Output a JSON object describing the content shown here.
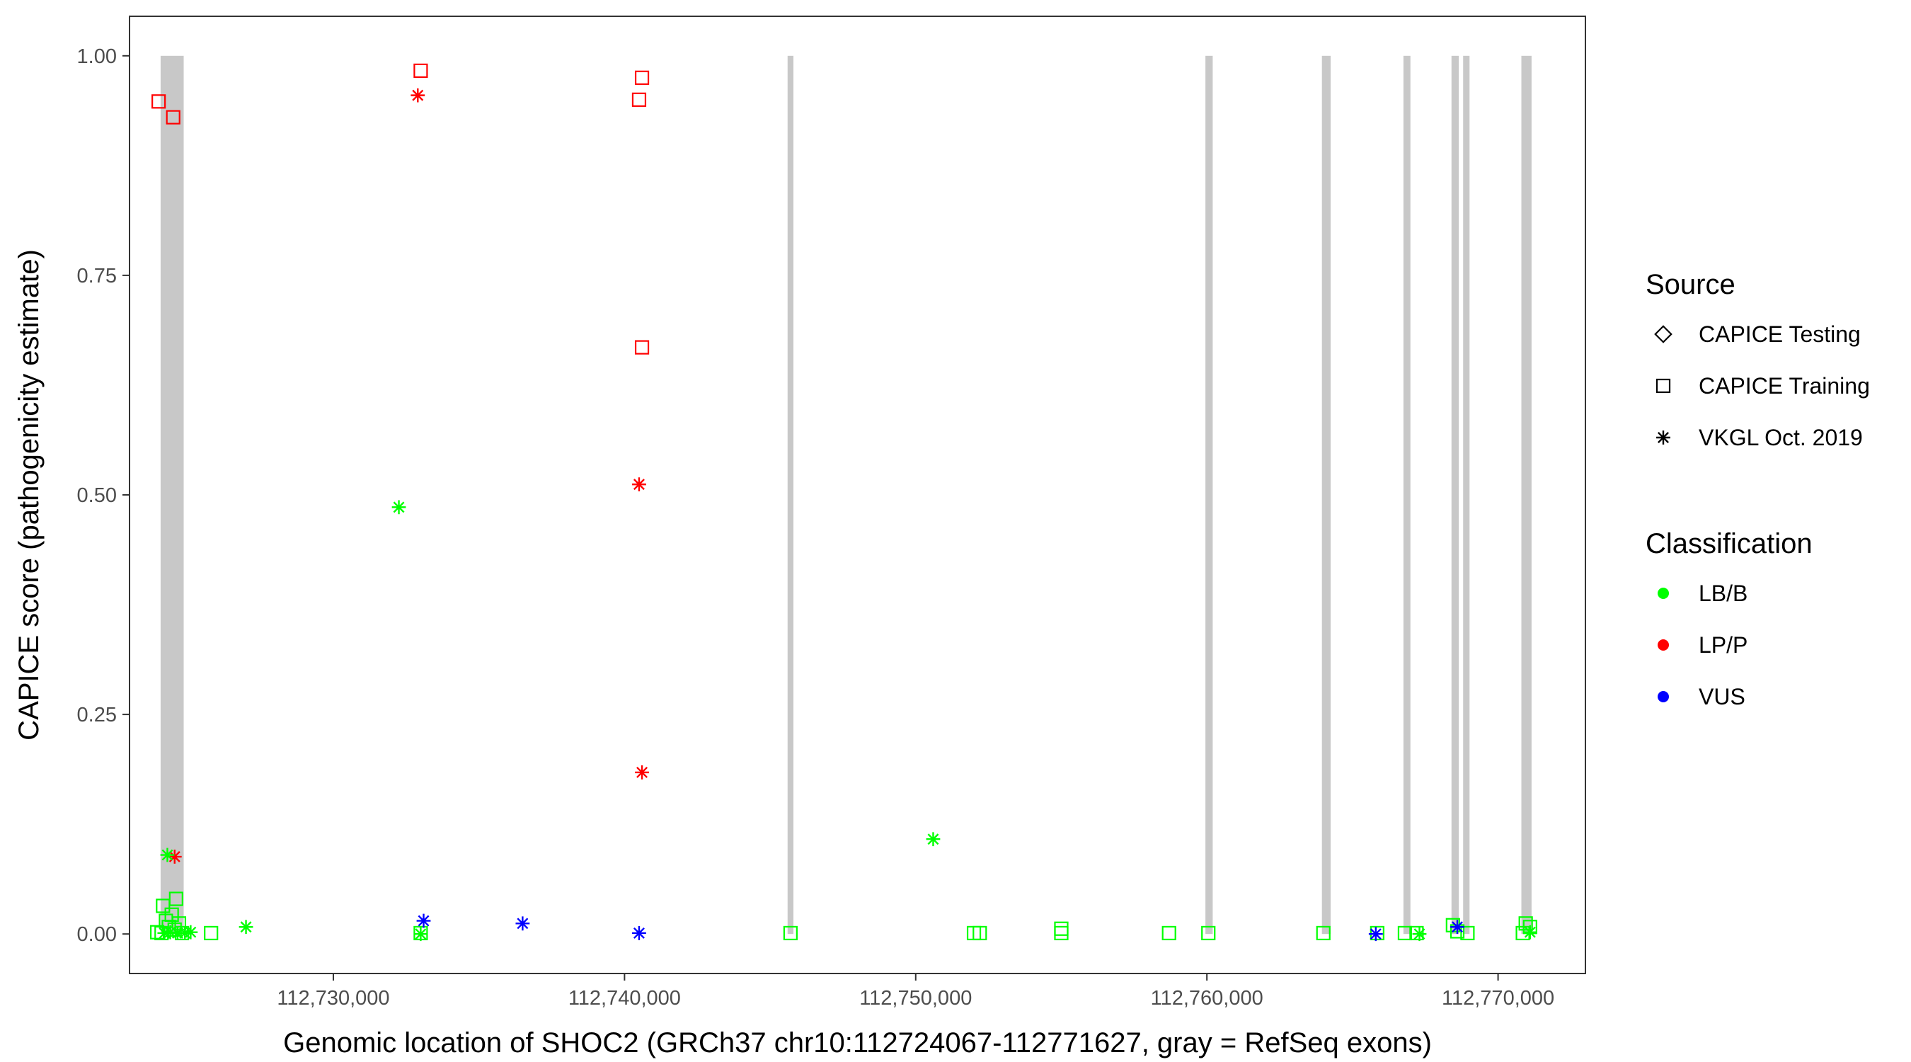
{
  "chart_data": {
    "type": "scatter",
    "xlabel": "Genomic location of SHOC2 (GRCh37 chr10:112724067-112771627, gray = RefSeq exons)",
    "ylabel": "CAPICE score (pathogenicity estimate)",
    "xlim": [
      112723000,
      112773000
    ],
    "ylim": [
      -0.045,
      1.045
    ],
    "x_ticks": [
      112730000,
      112740000,
      112750000,
      112760000,
      112770000
    ],
    "x_tick_labels": [
      "112,730,000",
      "112,740,000",
      "112,750,000",
      "112,760,000",
      "112,770,000"
    ],
    "y_ticks": [
      0,
      0.25,
      0.5,
      0.75,
      1.0
    ],
    "y_tick_labels": [
      "0.00",
      "0.25",
      "0.50",
      "0.75",
      "1.00"
    ],
    "grid": false,
    "exons": [
      [
        112724067,
        112724860
      ],
      [
        112745600,
        112745800
      ],
      [
        112759950,
        112760200
      ],
      [
        112763950,
        112764250
      ],
      [
        112766750,
        112766990
      ],
      [
        112768400,
        112768650
      ],
      [
        112768800,
        112769020
      ],
      [
        112770800,
        112771150
      ]
    ],
    "legends": [
      {
        "title": "Source",
        "entries": [
          {
            "label": "CAPICE Testing",
            "shape": "diamond"
          },
          {
            "label": "CAPICE Training",
            "shape": "square"
          },
          {
            "label": "VKGL Oct. 2019",
            "shape": "asterisk"
          }
        ]
      },
      {
        "title": "Classification",
        "entries": [
          {
            "label": "LB/B",
            "color": "#00ff00"
          },
          {
            "label": "LP/P",
            "color": "#ff0000"
          },
          {
            "label": "VUS",
            "color": "#0000ff"
          }
        ]
      }
    ],
    "colors": {
      "LB/B": "#00ff00",
      "LP/P": "#ff0000",
      "VUS": "#0000ff",
      "exon": "#c8c8c8"
    },
    "points": [
      {
        "x": 112724000,
        "y": 0.948,
        "source": "CAPICE Training",
        "class": "LP/P"
      },
      {
        "x": 112724500,
        "y": 0.93,
        "source": "CAPICE Training",
        "class": "LP/P"
      },
      {
        "x": 112733000,
        "y": 0.983,
        "source": "CAPICE Training",
        "class": "LP/P"
      },
      {
        "x": 112732900,
        "y": 0.955,
        "source": "VKGL Oct. 2019",
        "class": "LP/P"
      },
      {
        "x": 112740600,
        "y": 0.975,
        "source": "CAPICE Training",
        "class": "LP/P"
      },
      {
        "x": 112740500,
        "y": 0.95,
        "source": "CAPICE Training",
        "class": "LP/P"
      },
      {
        "x": 112740600,
        "y": 0.668,
        "source": "CAPICE Training",
        "class": "LP/P"
      },
      {
        "x": 112740500,
        "y": 0.512,
        "source": "VKGL Oct. 2019",
        "class": "LP/P"
      },
      {
        "x": 112740600,
        "y": 0.184,
        "source": "VKGL Oct. 2019",
        "class": "LP/P"
      },
      {
        "x": 112724550,
        "y": 0.088,
        "source": "VKGL Oct. 2019",
        "class": "LP/P"
      },
      {
        "x": 112732250,
        "y": 0.486,
        "source": "VKGL Oct. 2019",
        "class": "LB/B"
      },
      {
        "x": 112750600,
        "y": 0.108,
        "source": "VKGL Oct. 2019",
        "class": "LB/B"
      },
      {
        "x": 112727000,
        "y": 0.008,
        "source": "VKGL Oct. 2019",
        "class": "LB/B"
      },
      {
        "x": 112724300,
        "y": 0.09,
        "source": "VKGL Oct. 2019",
        "class": "LB/B"
      },
      {
        "x": 112724600,
        "y": 0.04,
        "source": "CAPICE Training",
        "class": "LB/B"
      },
      {
        "x": 112724150,
        "y": 0.032,
        "source": "CAPICE Training",
        "class": "LB/B"
      },
      {
        "x": 112724450,
        "y": 0.022,
        "source": "CAPICE Training",
        "class": "LB/B"
      },
      {
        "x": 112724250,
        "y": 0.015,
        "source": "CAPICE Training",
        "class": "LB/B"
      },
      {
        "x": 112724700,
        "y": 0.012,
        "source": "CAPICE Training",
        "class": "LB/B"
      },
      {
        "x": 112724350,
        "y": 0.008,
        "source": "CAPICE Training",
        "class": "LB/B"
      },
      {
        "x": 112724550,
        "y": 0.005,
        "source": "CAPICE Training",
        "class": "LB/B"
      },
      {
        "x": 112723950,
        "y": 0.002,
        "source": "CAPICE Training",
        "class": "LB/B"
      },
      {
        "x": 112724100,
        "y": 0.001,
        "source": "CAPICE Training",
        "class": "LB/B"
      },
      {
        "x": 112724800,
        "y": 0.001,
        "source": "CAPICE Training",
        "class": "LB/B"
      },
      {
        "x": 112724200,
        "y": 0.001,
        "source": "VKGL Oct. 2019",
        "class": "LB/B"
      },
      {
        "x": 112724400,
        "y": 0.002,
        "source": "VKGL Oct. 2019",
        "class": "LB/B"
      },
      {
        "x": 112724650,
        "y": 0.001,
        "source": "VKGL Oct. 2019",
        "class": "LB/B"
      },
      {
        "x": 112724900,
        "y": 0.001,
        "source": "VKGL Oct. 2019",
        "class": "LB/B"
      },
      {
        "x": 112725100,
        "y": 0.002,
        "source": "VKGL Oct. 2019",
        "class": "LB/B"
      },
      {
        "x": 112725800,
        "y": 0.001,
        "source": "CAPICE Training",
        "class": "LB/B"
      },
      {
        "x": 112733000,
        "y": 0.001,
        "source": "CAPICE Training",
        "class": "LB/B"
      },
      {
        "x": 112733000,
        "y": 0.0,
        "source": "VKGL Oct. 2019",
        "class": "LB/B"
      },
      {
        "x": 112745700,
        "y": 0.001,
        "source": "CAPICE Training",
        "class": "LB/B"
      },
      {
        "x": 112752000,
        "y": 0.001,
        "source": "CAPICE Training",
        "class": "LB/B"
      },
      {
        "x": 112752200,
        "y": 0.001,
        "source": "CAPICE Training",
        "class": "LB/B"
      },
      {
        "x": 112755000,
        "y": 0.006,
        "source": "CAPICE Training",
        "class": "LB/B"
      },
      {
        "x": 112755000,
        "y": 0.001,
        "source": "CAPICE Training",
        "class": "LB/B"
      },
      {
        "x": 112758700,
        "y": 0.001,
        "source": "CAPICE Training",
        "class": "LB/B"
      },
      {
        "x": 112760050,
        "y": 0.001,
        "source": "CAPICE Training",
        "class": "LB/B"
      },
      {
        "x": 112764000,
        "y": 0.001,
        "source": "CAPICE Training",
        "class": "LB/B"
      },
      {
        "x": 112765850,
        "y": 0.001,
        "source": "CAPICE Training",
        "class": "LB/B"
      },
      {
        "x": 112766800,
        "y": 0.001,
        "source": "CAPICE Training",
        "class": "LB/B"
      },
      {
        "x": 112767200,
        "y": 0.001,
        "source": "CAPICE Training",
        "class": "LB/B"
      },
      {
        "x": 112767300,
        "y": 0.0,
        "source": "VKGL Oct. 2019",
        "class": "LB/B"
      },
      {
        "x": 112768450,
        "y": 0.01,
        "source": "CAPICE Training",
        "class": "LB/B"
      },
      {
        "x": 112768600,
        "y": 0.003,
        "source": "CAPICE Training",
        "class": "LB/B"
      },
      {
        "x": 112768950,
        "y": 0.001,
        "source": "CAPICE Training",
        "class": "LB/B"
      },
      {
        "x": 112770950,
        "y": 0.012,
        "source": "CAPICE Training",
        "class": "LB/B"
      },
      {
        "x": 112771100,
        "y": 0.008,
        "source": "CAPICE Training",
        "class": "LB/B"
      },
      {
        "x": 112770850,
        "y": 0.001,
        "source": "CAPICE Training",
        "class": "LB/B"
      },
      {
        "x": 112771100,
        "y": 0.002,
        "source": "VKGL Oct. 2019",
        "class": "LB/B"
      },
      {
        "x": 112733100,
        "y": 0.015,
        "source": "VKGL Oct. 2019",
        "class": "VUS"
      },
      {
        "x": 112736500,
        "y": 0.012,
        "source": "VKGL Oct. 2019",
        "class": "VUS"
      },
      {
        "x": 112740500,
        "y": 0.001,
        "source": "VKGL Oct. 2019",
        "class": "VUS"
      },
      {
        "x": 112765800,
        "y": 0.0,
        "source": "VKGL Oct. 2019",
        "class": "VUS"
      },
      {
        "x": 112768600,
        "y": 0.008,
        "source": "VKGL Oct. 2019",
        "class": "VUS"
      }
    ]
  }
}
